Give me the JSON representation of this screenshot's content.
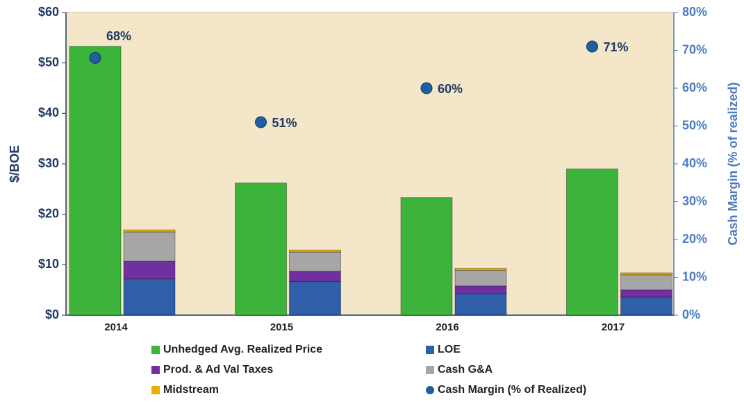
{
  "chart_data": {
    "type": "bar",
    "categories": [
      "2014",
      "2015",
      "2016",
      "2017"
    ],
    "series": [
      {
        "name": "Unhedged Avg. Realized Price",
        "color": "#3cb43c",
        "values": [
          53.3,
          26.2,
          23.3,
          29.0
        ]
      },
      {
        "name": "LOE",
        "color": "#2e5fa8",
        "values": [
          7.2,
          6.7,
          4.3,
          3.6
        ]
      },
      {
        "name": "Prod. & Ad Val Taxes",
        "color": "#7030a0",
        "values": [
          3.5,
          2.0,
          1.5,
          1.4
        ]
      },
      {
        "name": "Cash G&A",
        "color": "#a6a6a6",
        "values": [
          5.8,
          3.8,
          3.1,
          3.0
        ]
      },
      {
        "name": "Midstream",
        "color": "#e8b000",
        "values": [
          0.4,
          0.4,
          0.4,
          0.4
        ]
      },
      {
        "name": "Cash Margin (% of Realized)",
        "color": "#1f5f9f",
        "axis": "y2",
        "values": [
          68,
          51,
          60,
          71
        ],
        "value_labels": [
          "68%",
          "51%",
          "60%",
          "71%"
        ]
      }
    ],
    "ylabel": "$/BOE",
    "y2label": "Cash Margin (% of realized)",
    "ylim": [
      0,
      60
    ],
    "yticks": [
      {
        "value": 0,
        "label": "$0"
      },
      {
        "value": 10,
        "label": "$10"
      },
      {
        "value": 20,
        "label": "$20"
      },
      {
        "value": 30,
        "label": "$30"
      },
      {
        "value": 40,
        "label": "$40"
      },
      {
        "value": 50,
        "label": "$50"
      },
      {
        "value": 60,
        "label": "$60"
      }
    ],
    "y2lim": [
      0,
      80
    ],
    "y2ticks": [
      {
        "value": 0,
        "label": "0%"
      },
      {
        "value": 10,
        "label": "10%"
      },
      {
        "value": 20,
        "label": "20%"
      },
      {
        "value": 30,
        "label": "30%"
      },
      {
        "value": 40,
        "label": "40%"
      },
      {
        "value": 50,
        "label": "50%"
      },
      {
        "value": 60,
        "label": "60%"
      },
      {
        "value": 70,
        "label": "70%"
      },
      {
        "value": 80,
        "label": "80%"
      }
    ],
    "legend": "bottom"
  }
}
